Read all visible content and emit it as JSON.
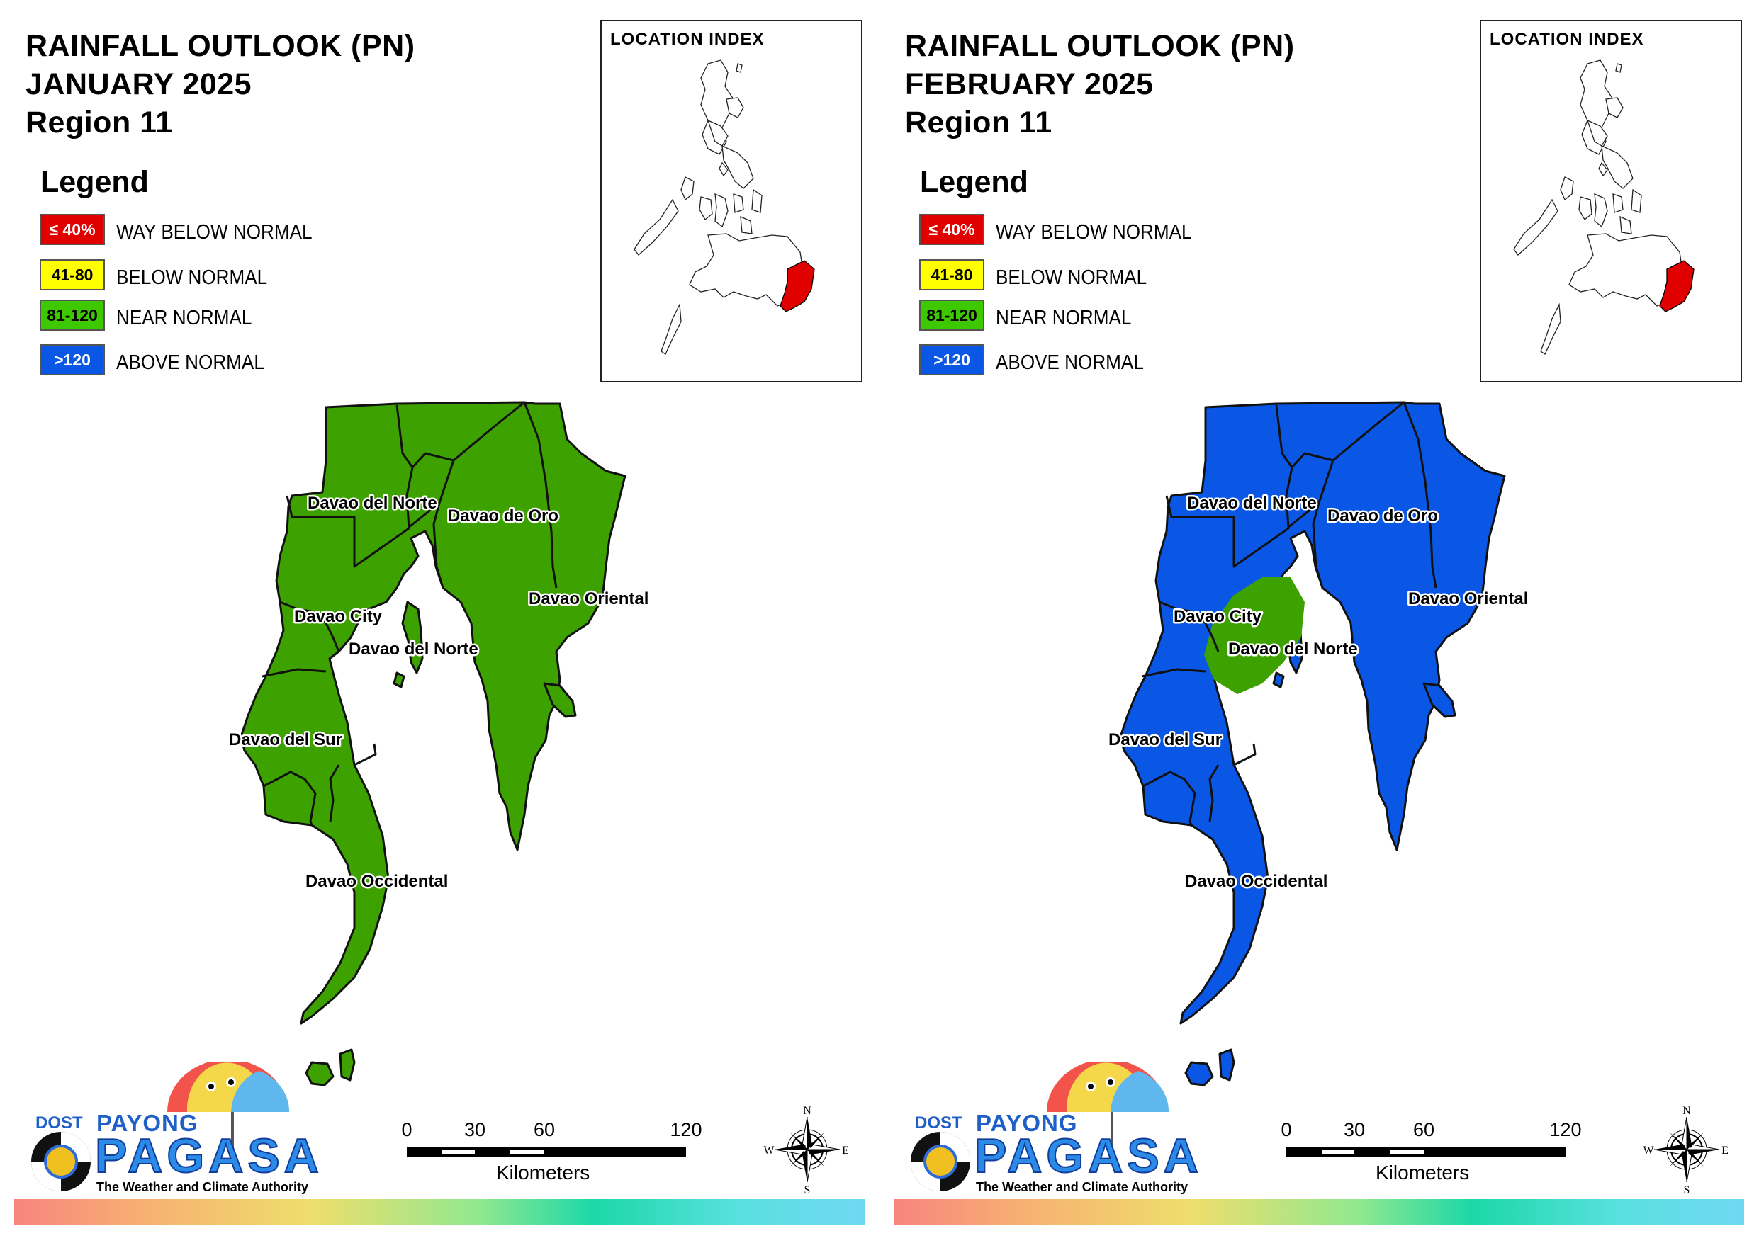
{
  "panels": [
    {
      "title": [
        "RAINFALL OUTLOOK (PN)",
        "JANUARY 2025",
        "Region 11"
      ],
      "fill_color": "#3da100",
      "davao_city_highlight": null
    },
    {
      "title": [
        "RAINFALL OUTLOOK (PN)",
        "FEBRUARY 2025",
        "Region 11"
      ],
      "fill_color": "#0a57e6",
      "davao_city_highlight": "#3da100"
    }
  ],
  "legend": {
    "title": "Legend",
    "items": [
      {
        "range": "≤ 40%",
        "label": "WAY BELOW NORMAL",
        "color": "#e00000",
        "text_color": "#ffffff"
      },
      {
        "range": "41-80",
        "label": "BELOW NORMAL",
        "color": "#ffff00",
        "text_color": "#000000"
      },
      {
        "range": "81-120",
        "label": "NEAR NORMAL",
        "color": "#3dc800",
        "text_color": "#000000"
      },
      {
        "range": ">120",
        "label": "ABOVE NORMAL",
        "color": "#0a57e6",
        "text_color": "#ffffff"
      }
    ]
  },
  "inset": {
    "title": "LOCATION INDEX",
    "highlight_color": "#e00000"
  },
  "map_labels": [
    "Davao del Norte",
    "Davao de Oro",
    "Davao Oriental",
    "Davao City",
    "Davao del Norte",
    "Davao del Sur",
    "Davao Occidental"
  ],
  "logo": {
    "dost": "DOST",
    "payong": "PAYONG",
    "pagasa": "PAGASA",
    "tagline": "The Weather and Climate Authority"
  },
  "scale": {
    "ticks": [
      "0",
      "30",
      "60",
      "120"
    ],
    "unit": "Kilometers"
  },
  "compass": {
    "n": "N",
    "e": "E",
    "s": "S",
    "w": "W"
  }
}
